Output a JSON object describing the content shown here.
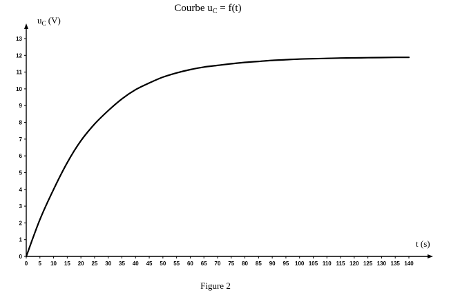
{
  "chart_data": {
    "type": "line",
    "title": "Courbe u",
    "title_sub": "C",
    "title_suffix": " = f(t)",
    "ylabel": "u",
    "ylabel_sub": "C",
    "ylabel_suffix": " (V)",
    "xlabel": "t (s)",
    "caption": "Figure 2",
    "xlim": [
      0,
      140
    ],
    "ylim": [
      0,
      13
    ],
    "x_ticks": [
      0,
      5,
      10,
      15,
      20,
      25,
      30,
      35,
      40,
      45,
      50,
      55,
      60,
      65,
      70,
      75,
      80,
      85,
      90,
      95,
      100,
      105,
      110,
      115,
      120,
      125,
      130,
      135,
      140
    ],
    "y_ticks": [
      0,
      1,
      2,
      3,
      4,
      5,
      6,
      7,
      8,
      9,
      10,
      11,
      12,
      13
    ],
    "grid": false,
    "legend": "none",
    "line_color": "#000000",
    "series": [
      {
        "x": [
          0,
          5,
          10,
          15,
          20,
          25,
          30,
          35,
          40,
          45,
          50,
          55,
          60,
          65,
          70,
          75,
          80,
          85,
          90,
          95,
          100,
          105,
          110,
          115,
          120,
          125,
          130,
          135,
          140
        ],
        "values": [
          0.0,
          2.2,
          4.0,
          5.6,
          6.9,
          7.9,
          8.7,
          9.4,
          9.95,
          10.35,
          10.7,
          10.95,
          11.15,
          11.3,
          11.4,
          11.5,
          11.58,
          11.64,
          11.7,
          11.74,
          11.78,
          11.8,
          11.82,
          11.84,
          11.85,
          11.86,
          11.87,
          11.88,
          11.88
        ]
      }
    ]
  }
}
